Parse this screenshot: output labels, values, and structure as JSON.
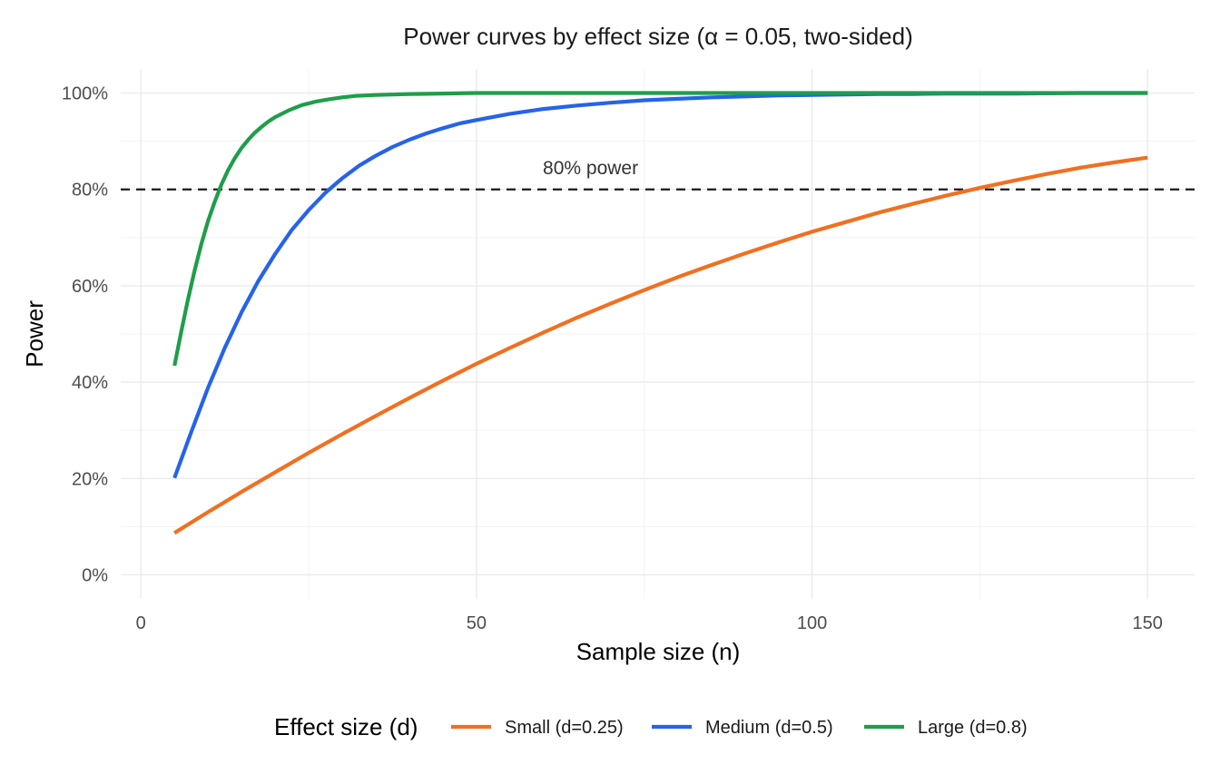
{
  "chart_data": {
    "type": "line",
    "title": "Power curves by effect size (α = 0.05, two-sided)",
    "xlabel": "Sample size (n)",
    "ylabel": "Power",
    "xlim": [
      -3,
      157
    ],
    "ylim": [
      -0.05,
      1.05
    ],
    "x_ticks": [
      0,
      50,
      100,
      150
    ],
    "x_tick_labels": [
      "0",
      "50",
      "100",
      "150"
    ],
    "y_ticks": [
      0,
      0.2,
      0.4,
      0.6,
      0.8,
      1.0
    ],
    "y_tick_labels": [
      "0%",
      "20%",
      "40%",
      "60%",
      "80%",
      "100%"
    ],
    "grid": true,
    "legend_position": "bottom",
    "legend_title": "Effect size (d)",
    "reference_line": {
      "y": 0.8,
      "style": "dashed",
      "color": "#1a1a1a"
    },
    "annotation": {
      "text": "80% power",
      "x": 67,
      "y": 0.845
    },
    "series": [
      {
        "name": "Small (d=0.25)",
        "color": "#F07020",
        "x": [
          5,
          10,
          15,
          20,
          25,
          30,
          35,
          40,
          45,
          50,
          55,
          60,
          65,
          70,
          75,
          80,
          85,
          90,
          95,
          100,
          105,
          110,
          115,
          120,
          125,
          130,
          135,
          140,
          145,
          150
        ],
        "y": [
          0.087,
          0.13,
          0.172,
          0.213,
          0.253,
          0.292,
          0.33,
          0.367,
          0.403,
          0.438,
          0.471,
          0.503,
          0.534,
          0.563,
          0.591,
          0.618,
          0.643,
          0.667,
          0.69,
          0.712,
          0.732,
          0.752,
          0.77,
          0.787,
          0.803,
          0.818,
          0.832,
          0.845,
          0.856,
          0.866
        ]
      },
      {
        "name": "Medium (d=0.5)",
        "color": "#2563EB",
        "x": [
          5,
          7.5,
          10,
          12.5,
          15,
          17.5,
          20,
          22.5,
          25,
          27.5,
          30,
          32.5,
          35,
          37.5,
          40,
          42.5,
          45,
          47.5,
          50,
          55,
          60,
          65,
          70,
          75,
          80,
          85,
          90,
          95,
          100,
          105,
          110,
          115,
          120,
          130,
          140,
          150
        ],
        "y": [
          0.201,
          0.296,
          0.388,
          0.471,
          0.545,
          0.61,
          0.666,
          0.716,
          0.757,
          0.793,
          0.823,
          0.849,
          0.87,
          0.888,
          0.903,
          0.916,
          0.927,
          0.937,
          0.944,
          0.957,
          0.967,
          0.974,
          0.98,
          0.985,
          0.988,
          0.991,
          0.993,
          0.995,
          0.996,
          0.997,
          0.998,
          0.998,
          0.999,
          0.999,
          1.0,
          1.0
        ]
      },
      {
        "name": "Large (d=0.8)",
        "color": "#1E9E4A",
        "x": [
          5,
          6,
          7,
          8,
          9,
          10,
          11,
          12,
          13,
          14,
          15,
          16,
          17,
          18,
          19,
          20,
          22,
          24,
          26,
          28,
          30,
          32,
          35,
          40,
          45,
          50,
          60,
          70,
          80,
          100,
          120,
          150
        ],
        "y": [
          0.434,
          0.503,
          0.57,
          0.631,
          0.686,
          0.734,
          0.774,
          0.81,
          0.84,
          0.865,
          0.886,
          0.903,
          0.918,
          0.93,
          0.941,
          0.95,
          0.964,
          0.975,
          0.982,
          0.987,
          0.991,
          0.994,
          0.996,
          0.998,
          0.999,
          1.0,
          1.0,
          1.0,
          1.0,
          1.0,
          1.0,
          1.0
        ]
      }
    ]
  }
}
